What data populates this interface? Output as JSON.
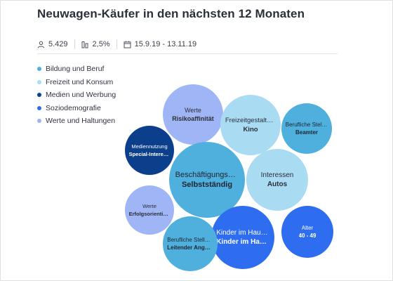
{
  "title": "Neuwagen-Käufer in den nächsten 12 Monaten",
  "stats": {
    "count": "5.429",
    "share": "2,5%",
    "date_range": "15.9.19 - 13.11.19"
  },
  "legend": [
    {
      "label": "Bildung und Beruf",
      "color": "#4fb0de"
    },
    {
      "label": "Freizeit und Konsum",
      "color": "#a9dbf3"
    },
    {
      "label": "Medien und Werbung",
      "color": "#0b3f8c"
    },
    {
      "label": "Soziodemografie",
      "color": "#2f6df0"
    },
    {
      "label": "Werte und Haltungen",
      "color": "#9fb5f5"
    }
  ],
  "bubbles": {
    "werte_risiko": {
      "category": "Werte",
      "value": "Risikoaffinität"
    },
    "freizeit_kino": {
      "category": "Freizeitgestaltung",
      "value": "Kino"
    },
    "beruf_beamter": {
      "category": "Berufliche Stellu…",
      "value": "Beamter"
    },
    "medien_special": {
      "category": "Mediennutzung",
      "value": "Special-Interest…"
    },
    "beschaeftigung": {
      "category": "Beschäftigungssta…",
      "value": "Selbstständig"
    },
    "interessen_autos": {
      "category": "Interessen",
      "value": "Autos"
    },
    "werte_erfolg": {
      "category": "Werte",
      "value": "Erfolgsorientier…"
    },
    "kinder_haus": {
      "category": "Kinder im Haus…",
      "value": "Kinder im Haus…"
    },
    "alter": {
      "category": "Alter",
      "value": "40 - 49"
    },
    "beruf_leitend": {
      "category": "Berufliche Stellu…",
      "value": "Leitender Ange…"
    }
  }
}
